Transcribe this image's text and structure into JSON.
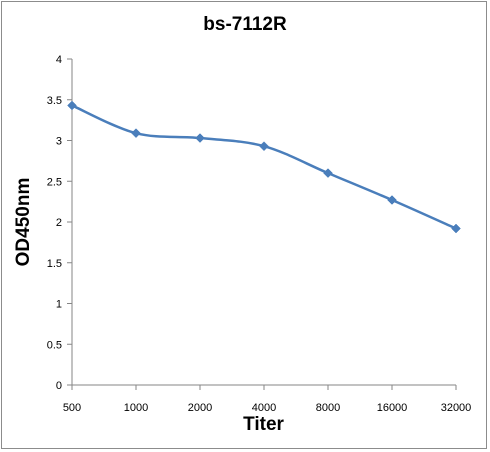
{
  "chart_data": {
    "type": "line",
    "title": "bs-7112R",
    "xlabel": "Titer",
    "ylabel": "OD450nm",
    "categories": [
      "500",
      "1000",
      "2000",
      "4000",
      "8000",
      "16000",
      "32000"
    ],
    "series": [
      {
        "values": [
          3.43,
          3.09,
          3.03,
          2.93,
          2.6,
          2.27,
          1.92
        ]
      }
    ],
    "ylim": [
      0,
      4
    ],
    "yticks": [
      "0",
      "0.5",
      "1",
      "1.5",
      "2",
      "2.5",
      "3",
      "3.5",
      "4"
    ],
    "grid": false,
    "legend": "none",
    "colors": {
      "series": "#4a7ebb",
      "axis": "#868686"
    }
  }
}
